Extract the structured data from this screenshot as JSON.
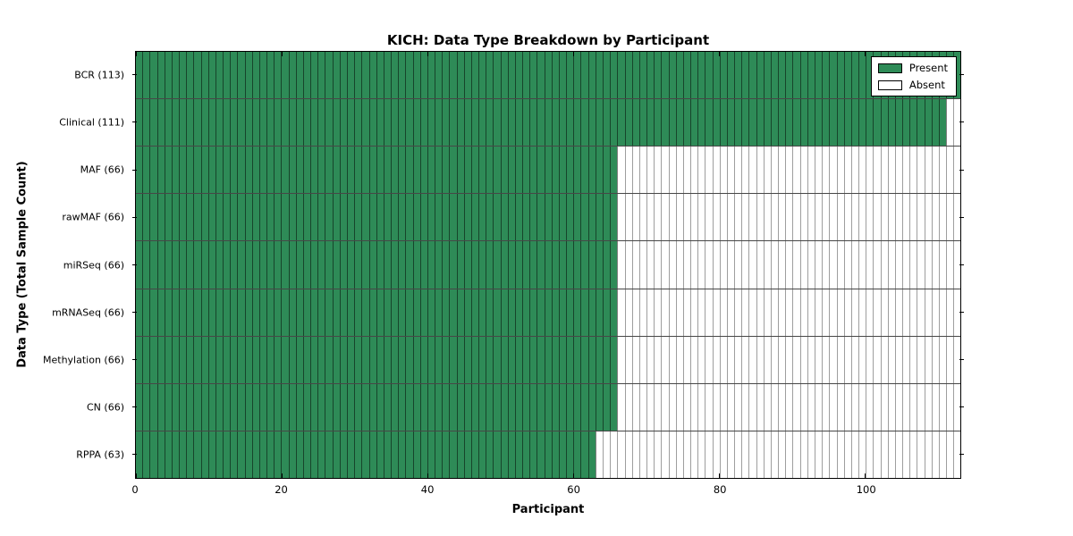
{
  "title": "KICH: Data Type Breakdown by Participant",
  "colors": {
    "present": "#2e8b57",
    "absent": "#ffffff",
    "axis": "#000000"
  },
  "chart_data": {
    "type": "heatmap",
    "title": "KICH: Data Type Breakdown by Participant",
    "xlabel": "Participant",
    "ylabel": "Data Type (Total Sample Count)",
    "xlim": [
      0,
      113
    ],
    "x_ticks": [
      0,
      20,
      40,
      60,
      80,
      100
    ],
    "total_participants": 113,
    "grid": true,
    "rows": [
      {
        "label": "BCR (113)",
        "data_type": "BCR",
        "total_sample_count": 113,
        "present_count": 113
      },
      {
        "label": "Clinical (111)",
        "data_type": "Clinical",
        "total_sample_count": 111,
        "present_count": 111
      },
      {
        "label": "MAF (66)",
        "data_type": "MAF",
        "total_sample_count": 66,
        "present_count": 66
      },
      {
        "label": "rawMAF (66)",
        "data_type": "rawMAF",
        "total_sample_count": 66,
        "present_count": 66
      },
      {
        "label": "miRSeq (66)",
        "data_type": "miRSeq",
        "total_sample_count": 66,
        "present_count": 66
      },
      {
        "label": "mRNASeq (66)",
        "data_type": "mRNASeq",
        "total_sample_count": 66,
        "present_count": 66
      },
      {
        "label": "Methylation (66)",
        "data_type": "Methylation",
        "total_sample_count": 66,
        "present_count": 66
      },
      {
        "label": "CN (66)",
        "data_type": "CN",
        "total_sample_count": 66,
        "present_count": 66
      },
      {
        "label": "RPPA (63)",
        "data_type": "RPPA",
        "total_sample_count": 63,
        "present_count": 63
      }
    ],
    "legend": [
      {
        "label": "Present",
        "color": "#2e8b57"
      },
      {
        "label": "Absent",
        "color": "#ffffff"
      }
    ],
    "legend_position": "upper right"
  }
}
